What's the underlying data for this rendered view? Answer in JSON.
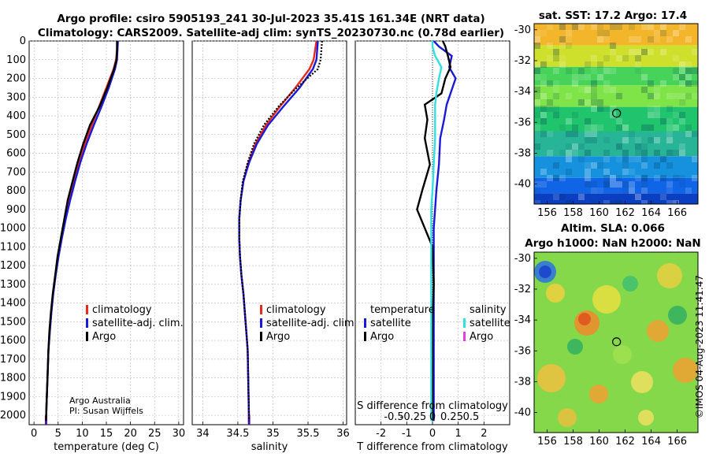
{
  "header": {
    "line1": "Argo profile: csiro 5905193_241 30-Jul-2023 35.41S 161.34E (NRT data)",
    "line2": "Climatology: CARS2009. Satellite-adj clim: synTS_20230730.nc (0.78d earlier)"
  },
  "credit": {
    "line1": "Argo Australia",
    "line2": "PI: Susan Wijffels"
  },
  "stamp": "©IMOS 04-Aug-2023 11:41:47",
  "colors": {
    "red": "#e8291c",
    "blue": "#1a1ad6",
    "black": "#000000",
    "cyan": "#33e0e0",
    "magenta": "#e040e0"
  },
  "chart_data": [
    {
      "id": "temperature",
      "type": "line",
      "xlabel": "temperature (deg C)",
      "ylabel": "",
      "xlim": [
        -1,
        31
      ],
      "ylim": [
        2050,
        0
      ],
      "xticks": [
        0,
        5,
        10,
        15,
        20,
        25,
        30
      ],
      "yticks": [
        0,
        100,
        200,
        300,
        400,
        500,
        600,
        700,
        800,
        900,
        1000,
        1100,
        1200,
        1300,
        1400,
        1500,
        1600,
        1700,
        1800,
        1900,
        2000
      ],
      "legend": [
        "climatology",
        "satellite-adj. clim.",
        "Argo"
      ],
      "series": [
        {
          "name": "climatology",
          "color": "red",
          "style": "solid",
          "x": [
            17.3,
            17.2,
            17.0,
            16.5,
            15.0,
            13.5,
            12.0,
            10.5,
            9.3,
            8.2,
            7.3,
            6.5,
            5.7,
            5.0,
            4.5,
            4.0,
            3.6,
            3.3,
            3.0,
            2.8,
            2.6,
            2.5
          ],
          "y": [
            0,
            50,
            100,
            150,
            250,
            350,
            450,
            550,
            650,
            750,
            850,
            950,
            1050,
            1150,
            1250,
            1350,
            1450,
            1550,
            1650,
            1800,
            1950,
            2050
          ]
        },
        {
          "name": "satellite-adj. clim.",
          "color": "blue",
          "style": "solid",
          "x": [
            17.4,
            17.3,
            17.2,
            16.8,
            15.5,
            14.0,
            12.4,
            10.9,
            9.6,
            8.5,
            7.5,
            6.6,
            5.8,
            5.1,
            4.5,
            4.0,
            3.6,
            3.3,
            3.0,
            2.8,
            2.6,
            2.5
          ],
          "y": [
            0,
            50,
            100,
            150,
            250,
            350,
            450,
            550,
            650,
            750,
            850,
            950,
            1050,
            1150,
            1250,
            1350,
            1450,
            1550,
            1650,
            1800,
            1950,
            2050
          ]
        },
        {
          "name": "Argo",
          "color": "black",
          "style": "solid",
          "x": [
            17.2,
            17.2,
            17.1,
            16.6,
            15.2,
            13.6,
            11.6,
            10.2,
            9.0,
            8.0,
            7.0,
            6.3,
            5.6,
            4.9,
            4.4,
            3.9,
            3.5,
            3.2,
            3.0,
            2.8,
            2.6,
            2.5
          ],
          "y": [
            0,
            50,
            100,
            150,
            250,
            350,
            450,
            550,
            650,
            750,
            850,
            950,
            1050,
            1150,
            1250,
            1350,
            1450,
            1550,
            1650,
            1800,
            1950,
            2030
          ]
        }
      ]
    },
    {
      "id": "salinity",
      "type": "line",
      "xlabel": "salinity",
      "ylabel": "",
      "xlim": [
        33.85,
        36.05
      ],
      "ylim": [
        2050,
        0
      ],
      "xticks": [
        34,
        34.5,
        35,
        35.5,
        36
      ],
      "yticks": [
        0,
        100,
        200,
        300,
        400,
        500,
        600,
        700,
        800,
        900,
        1000,
        1100,
        1200,
        1300,
        1400,
        1500,
        1600,
        1700,
        1800,
        1900,
        2000
      ],
      "legend": [
        "climatology",
        "satellite-adj. clim.",
        "Argo"
      ],
      "series": [
        {
          "name": "climatology",
          "color": "red",
          "style": "solid",
          "x": [
            35.62,
            35.6,
            35.58,
            35.52,
            35.32,
            35.1,
            34.9,
            34.75,
            34.65,
            34.58,
            34.54,
            34.52,
            34.52,
            34.53,
            34.55,
            34.58,
            34.6,
            34.62,
            34.64,
            34.65,
            34.66
          ],
          "y": [
            0,
            50,
            100,
            150,
            250,
            350,
            450,
            550,
            650,
            750,
            850,
            950,
            1050,
            1150,
            1250,
            1350,
            1450,
            1550,
            1650,
            1850,
            2050
          ]
        },
        {
          "name": "satellite-adj. clim.",
          "color": "blue",
          "style": "solid",
          "x": [
            35.64,
            35.63,
            35.62,
            35.57,
            35.38,
            35.15,
            34.93,
            34.77,
            34.66,
            34.58,
            34.54,
            34.52,
            34.52,
            34.53,
            34.55,
            34.58,
            34.6,
            34.62,
            34.64,
            34.65,
            34.66
          ],
          "y": [
            0,
            50,
            100,
            150,
            250,
            350,
            450,
            550,
            650,
            750,
            850,
            950,
            1050,
            1150,
            1250,
            1350,
            1450,
            1550,
            1650,
            1850,
            2050
          ]
        },
        {
          "name": "Argo",
          "color": "black",
          "style": "dotted",
          "x": [
            35.7,
            35.69,
            35.68,
            35.64,
            35.34,
            35.08,
            34.87,
            34.73,
            34.64,
            34.57,
            34.54,
            34.52,
            34.52,
            34.53,
            34.55,
            34.58,
            34.6,
            34.62,
            34.64,
            34.65,
            34.66
          ],
          "y": [
            0,
            50,
            100,
            150,
            250,
            350,
            450,
            550,
            650,
            750,
            850,
            950,
            1050,
            1150,
            1250,
            1350,
            1450,
            1550,
            1650,
            1850,
            2030
          ]
        }
      ]
    },
    {
      "id": "difference",
      "type": "line",
      "xlabel": "T difference from climatology",
      "xlabel2": "S difference from climatology",
      "ylabel": "",
      "xlim": [
        -3,
        3
      ],
      "ylim": [
        2050,
        0
      ],
      "xticks": [
        -2,
        -1,
        0,
        1,
        2
      ],
      "xticks_labels": [
        "-2",
        "-1",
        "0",
        "1",
        "2"
      ],
      "xticks2": [
        -1.5,
        -0.75,
        0,
        0.75,
        1.5
      ],
      "xticks2_labels": [
        "-0.5",
        "-0.25",
        "0",
        "0.25",
        "0.5"
      ],
      "yticks": [
        0,
        100,
        200,
        300,
        400,
        500,
        600,
        700,
        800,
        900,
        1000,
        1100,
        1200,
        1300,
        1400,
        1500,
        1600,
        1700,
        1800,
        1900,
        2000
      ],
      "legend_groups": [
        {
          "title": "temperature",
          "items": [
            "satellite",
            "Argo"
          ]
        },
        {
          "title": "salinity",
          "items": [
            "satellite",
            "Argo"
          ]
        }
      ],
      "series": [
        {
          "name": "temperature satellite",
          "color": "blue",
          "style": "solid",
          "x": [
            0.05,
            0.25,
            0.75,
            0.65,
            0.9,
            0.7,
            0.55,
            0.45,
            0.3,
            0.25,
            0.15,
            0.1,
            0.05,
            0.05,
            0.05,
            0.05,
            0.05,
            0.05,
            0.05,
            0.05
          ],
          "y": [
            0,
            30,
            80,
            140,
            200,
            280,
            340,
            420,
            520,
            660,
            800,
            900,
            1000,
            1100,
            1300,
            1500,
            1700,
            1850,
            1950,
            2030
          ]
        },
        {
          "name": "temperature Argo",
          "color": "black",
          "style": "solid",
          "x": [
            0.4,
            0.5,
            0.6,
            0.7,
            0.5,
            0.35,
            -0.3,
            -0.2,
            -0.3,
            -0.1,
            -0.4,
            -0.6,
            -0.3,
            0.0,
            0.05,
            0.0,
            0.0,
            0.0,
            0.0,
            0.0
          ],
          "y": [
            0,
            30,
            80,
            140,
            200,
            280,
            340,
            420,
            520,
            660,
            800,
            900,
            1000,
            1100,
            1300,
            1500,
            1700,
            1850,
            1950,
            2030
          ]
        },
        {
          "name": "salinity satellite",
          "color": "cyan",
          "style": "solid",
          "x": [
            0.0,
            0.0,
            0.1,
            0.35,
            0.25,
            0.15,
            0.1,
            0.1,
            0.1,
            0.05,
            0.0,
            -0.05,
            -0.05,
            -0.05,
            -0.05,
            -0.05,
            -0.05,
            -0.05,
            -0.05,
            -0.05
          ],
          "y": [
            0,
            30,
            80,
            140,
            200,
            280,
            340,
            420,
            520,
            660,
            800,
            900,
            1000,
            1100,
            1300,
            1500,
            1700,
            1850,
            1950,
            2030
          ]
        }
      ]
    },
    {
      "id": "sst-map",
      "type": "heatmap",
      "title": "sat. SST: 17.2  Argo: 17.4",
      "xlim": [
        155,
        167.6
      ],
      "ylim": [
        -41.3,
        -29.6
      ],
      "xticks": [
        156,
        158,
        160,
        162,
        164,
        166
      ],
      "yticks": [
        -30,
        -32,
        -34,
        -36,
        -38,
        -40
      ],
      "marker": {
        "lon": 161.34,
        "lat": -35.41
      },
      "bands": [
        {
          "from": -29.6,
          "to": -31.0,
          "color": "#f3b62a"
        },
        {
          "from": -31.0,
          "to": -32.4,
          "color": "#cfe02c"
        },
        {
          "from": -32.4,
          "to": -33.6,
          "color": "#47d35a"
        },
        {
          "from": -33.6,
          "to": -35.0,
          "color": "#7fe448"
        },
        {
          "from": -35.0,
          "to": -36.6,
          "color": "#20c46c"
        },
        {
          "from": -36.6,
          "to": -38.2,
          "color": "#27b497"
        },
        {
          "from": -38.2,
          "to": -39.6,
          "color": "#1591dd"
        },
        {
          "from": -39.6,
          "to": -40.6,
          "color": "#1065e6"
        },
        {
          "from": -40.6,
          "to": -41.3,
          "color": "#0b3fc2"
        }
      ]
    },
    {
      "id": "sla-map",
      "type": "heatmap",
      "title": "Altim. SLA: 0.066",
      "subtitle": "Argo h1000: NaN h2000: NaN",
      "xlim": [
        155,
        167.6
      ],
      "ylim": [
        -41.3,
        -29.6
      ],
      "xticks": [
        156,
        158,
        160,
        162,
        164,
        166
      ],
      "yticks": [
        -30,
        -32,
        -34,
        -36,
        -38,
        -40
      ],
      "marker": {
        "lon": 161.34,
        "lat": -35.41
      },
      "base_color": "#86d84b"
    }
  ]
}
